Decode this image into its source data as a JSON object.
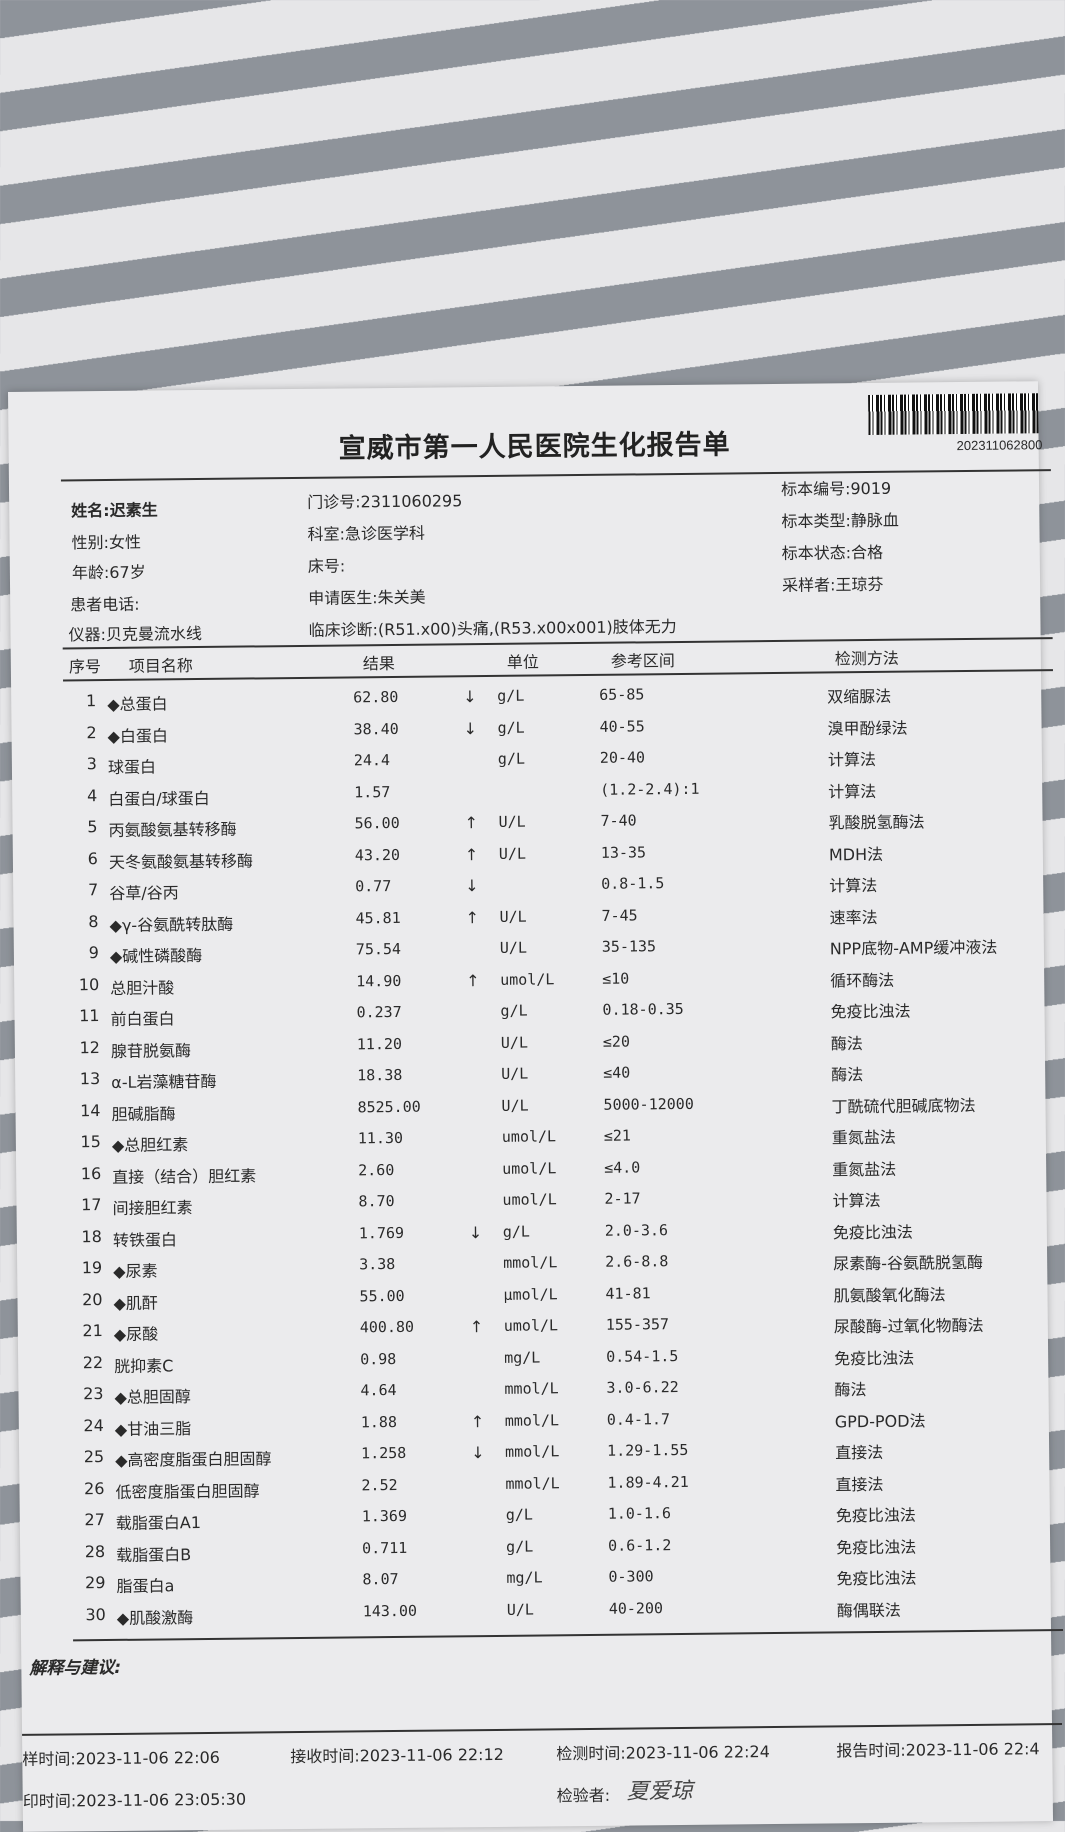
{
  "report": {
    "title": "宣威市第一人民医院生化报告单",
    "barcode_number": "202311062800"
  },
  "patient": {
    "name": "姓名:迟素生",
    "gender": "性别:女性",
    "age": "年龄:67岁",
    "phone": "患者电话:",
    "instrument": "仪器:贝克曼流水线",
    "outpatient_no": "门诊号:2311060295",
    "department": "科室:急诊医学科",
    "bed_no": "床号:",
    "doctor": "申请医生:朱关美",
    "diagnosis": "临床诊断:(R51.x00)头痛,(R53.x00x001)肢体无力",
    "specimen_no": "标本编号:9019",
    "specimen_type": "标本类型:静脉血",
    "specimen_status": "标本状态:合格",
    "collector": "采样者:王琼芬"
  },
  "table": {
    "headers": {
      "seq": "序号",
      "name": "项目名称",
      "result": "结果",
      "unit": "单位",
      "ref": "参考区间",
      "method": "检测方法"
    },
    "rows": [
      {
        "seq": "1",
        "name": "◆总蛋白",
        "result": "62.80",
        "flag": "↓",
        "unit": "g/L",
        "ref": "65-85",
        "method": "双缩脲法"
      },
      {
        "seq": "2",
        "name": "◆白蛋白",
        "result": "38.40",
        "flag": "↓",
        "unit": "g/L",
        "ref": "40-55",
        "method": "溴甲酚绿法"
      },
      {
        "seq": "3",
        "name": "球蛋白",
        "result": "24.4",
        "flag": "",
        "unit": "g/L",
        "ref": "20-40",
        "method": "计算法"
      },
      {
        "seq": "4",
        "name": "白蛋白/球蛋白",
        "result": "1.57",
        "flag": "",
        "unit": "",
        "ref": "(1.2-2.4):1",
        "method": "计算法"
      },
      {
        "seq": "5",
        "name": "丙氨酸氨基转移酶",
        "result": "56.00",
        "flag": "↑",
        "unit": "U/L",
        "ref": "7-40",
        "method": "乳酸脱氢酶法"
      },
      {
        "seq": "6",
        "name": "天冬氨酸氨基转移酶",
        "result": "43.20",
        "flag": "↑",
        "unit": "U/L",
        "ref": "13-35",
        "method": "MDH法"
      },
      {
        "seq": "7",
        "name": "谷草/谷丙",
        "result": "0.77",
        "flag": "↓",
        "unit": "",
        "ref": "0.8-1.5",
        "method": "计算法"
      },
      {
        "seq": "8",
        "name": "◆γ-谷氨酰转肽酶",
        "result": "45.81",
        "flag": "↑",
        "unit": "U/L",
        "ref": "7-45",
        "method": "速率法"
      },
      {
        "seq": "9",
        "name": "◆碱性磷酸酶",
        "result": "75.54",
        "flag": "",
        "unit": "U/L",
        "ref": "35-135",
        "method": "NPP底物-AMP缓冲液法"
      },
      {
        "seq": "10",
        "name": "总胆汁酸",
        "result": "14.90",
        "flag": "↑",
        "unit": "umol/L",
        "ref": "≤10",
        "method": "循环酶法"
      },
      {
        "seq": "11",
        "name": "前白蛋白",
        "result": "0.237",
        "flag": "",
        "unit": "g/L",
        "ref": "0.18-0.35",
        "method": "免疫比浊法"
      },
      {
        "seq": "12",
        "name": "腺苷脱氨酶",
        "result": "11.20",
        "flag": "",
        "unit": "U/L",
        "ref": "≤20",
        "method": "酶法"
      },
      {
        "seq": "13",
        "name": "α-L岩藻糖苷酶",
        "result": "18.38",
        "flag": "",
        "unit": "U/L",
        "ref": "≤40",
        "method": "酶法"
      },
      {
        "seq": "14",
        "name": "胆碱脂酶",
        "result": "8525.00",
        "flag": "",
        "unit": "U/L",
        "ref": "5000-12000",
        "method": "丁酰硫代胆碱底物法"
      },
      {
        "seq": "15",
        "name": "◆总胆红素",
        "result": "11.30",
        "flag": "",
        "unit": "umol/L",
        "ref": "≤21",
        "method": "重氮盐法"
      },
      {
        "seq": "16",
        "name": "直接（结合）胆红素",
        "result": "2.60",
        "flag": "",
        "unit": "umol/L",
        "ref": "≤4.0",
        "method": "重氮盐法"
      },
      {
        "seq": "17",
        "name": "间接胆红素",
        "result": "8.70",
        "flag": "",
        "unit": "umol/L",
        "ref": "2-17",
        "method": "计算法"
      },
      {
        "seq": "18",
        "name": "转铁蛋白",
        "result": "1.769",
        "flag": "↓",
        "unit": "g/L",
        "ref": "2.0-3.6",
        "method": "免疫比浊法"
      },
      {
        "seq": "19",
        "name": "◆尿素",
        "result": "3.38",
        "flag": "",
        "unit": "mmol/L",
        "ref": "2.6-8.8",
        "method": "尿素酶-谷氨酰脱氢酶"
      },
      {
        "seq": "20",
        "name": "◆肌酐",
        "result": "55.00",
        "flag": "",
        "unit": "μmol/L",
        "ref": "41-81",
        "method": "肌氨酸氧化酶法"
      },
      {
        "seq": "21",
        "name": "◆尿酸",
        "result": "400.80",
        "flag": "↑",
        "unit": "umol/L",
        "ref": "155-357",
        "method": "尿酸酶-过氧化物酶法"
      },
      {
        "seq": "22",
        "name": "胱抑素C",
        "result": "0.98",
        "flag": "",
        "unit": "mg/L",
        "ref": "0.54-1.5",
        "method": "免疫比浊法"
      },
      {
        "seq": "23",
        "name": "◆总胆固醇",
        "result": "4.64",
        "flag": "",
        "unit": "mmol/L",
        "ref": "3.0-6.22",
        "method": "酶法"
      },
      {
        "seq": "24",
        "name": "◆甘油三脂",
        "result": "1.88",
        "flag": "↑",
        "unit": "mmol/L",
        "ref": "0.4-1.7",
        "method": "GPD-POD法"
      },
      {
        "seq": "25",
        "name": "◆高密度脂蛋白胆固醇",
        "result": "1.258",
        "flag": "↓",
        "unit": "mmol/L",
        "ref": "1.29-1.55",
        "method": "直接法"
      },
      {
        "seq": "26",
        "name": "低密度脂蛋白胆固醇",
        "result": "2.52",
        "flag": "",
        "unit": "mmol/L",
        "ref": "1.89-4.21",
        "method": "直接法"
      },
      {
        "seq": "27",
        "name": "载脂蛋白A1",
        "result": "1.369",
        "flag": "",
        "unit": "g/L",
        "ref": "1.0-1.6",
        "method": "免疫比浊法"
      },
      {
        "seq": "28",
        "name": "载脂蛋白B",
        "result": "0.711",
        "flag": "",
        "unit": "g/L",
        "ref": "0.6-1.2",
        "method": "免疫比浊法"
      },
      {
        "seq": "29",
        "name": "脂蛋白a",
        "result": "8.07",
        "flag": "",
        "unit": "mg/L",
        "ref": "0-300",
        "method": "免疫比浊法"
      },
      {
        "seq": "30",
        "name": "◆肌酸激酶",
        "result": "143.00",
        "flag": "",
        "unit": "U/L",
        "ref": "40-200",
        "method": "酶偶联法"
      }
    ]
  },
  "notes_label": "解释与建议:",
  "footer": {
    "collect_time": "样时间:2023-11-06 22:06",
    "receive_time": "接收时间:2023-11-06 22:12",
    "test_time": "检测时间:2023-11-06 22:24",
    "report_time": "报告时间:2023-11-06 22:4",
    "print_time": "印时间:2023-11-06 23:05:30",
    "inspector_label": "检验者:",
    "inspector_signature": "夏爱琼"
  }
}
